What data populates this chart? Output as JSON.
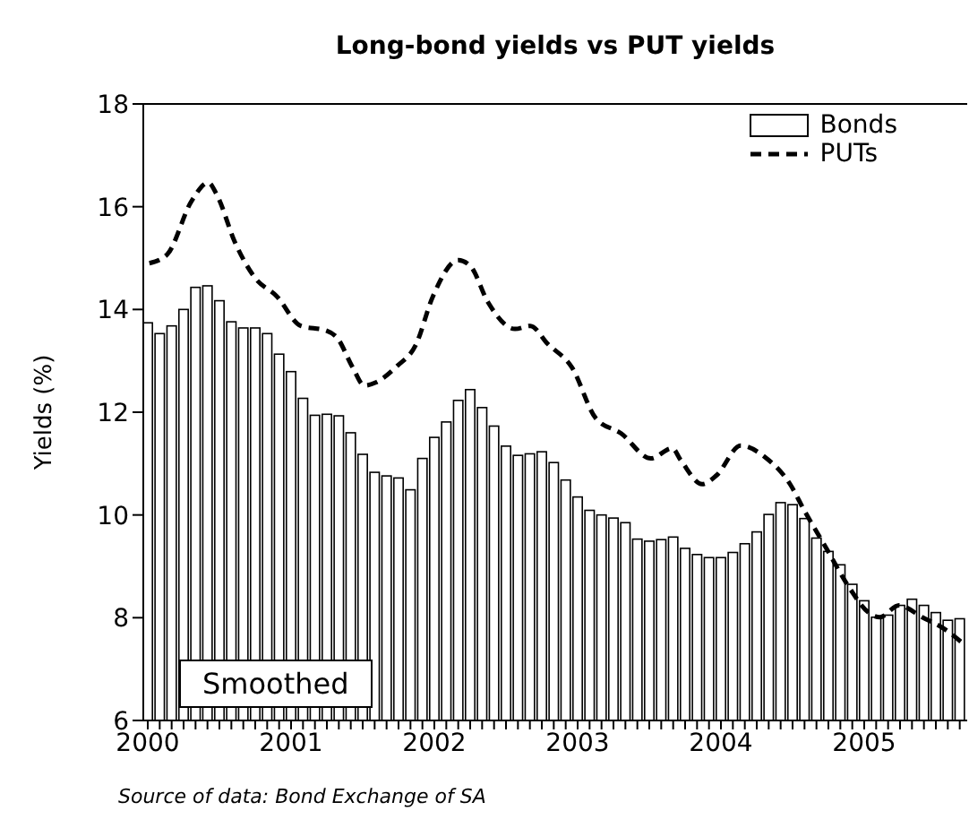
{
  "chart_data": {
    "type": "bar",
    "title": "Long-bond yields vs PUT yields",
    "ylabel": "Yields (%)",
    "annotations": [
      "Smoothed",
      "Source of data: Bond Exchange of SA"
    ],
    "x": [
      "2000-01",
      "2000-02",
      "2000-03",
      "2000-04",
      "2000-05",
      "2000-06",
      "2000-07",
      "2000-08",
      "2000-09",
      "2000-10",
      "2000-11",
      "2000-12",
      "2001-01",
      "2001-02",
      "2001-03",
      "2001-04",
      "2001-05",
      "2001-06",
      "2001-07",
      "2001-08",
      "2001-09",
      "2001-10",
      "2001-11",
      "2001-12",
      "2002-01",
      "2002-02",
      "2002-03",
      "2002-04",
      "2002-05",
      "2002-06",
      "2002-07",
      "2002-08",
      "2002-09",
      "2002-10",
      "2002-11",
      "2002-12",
      "2003-01",
      "2003-02",
      "2003-03",
      "2003-04",
      "2003-05",
      "2003-06",
      "2003-07",
      "2003-08",
      "2003-09",
      "2003-10",
      "2003-11",
      "2003-12",
      "2004-01",
      "2004-02",
      "2004-03",
      "2004-04",
      "2004-05",
      "2004-06",
      "2004-07",
      "2004-08",
      "2004-09",
      "2004-10",
      "2004-11",
      "2004-12",
      "2005-01",
      "2005-02",
      "2005-03",
      "2005-04",
      "2005-05",
      "2005-06",
      "2005-07",
      "2005-08",
      "2005-09"
    ],
    "series": [
      {
        "name": "Bonds",
        "color": "#ffffff",
        "values": [
          13.74,
          13.53,
          13.68,
          14.0,
          14.43,
          14.46,
          14.17,
          13.76,
          13.64,
          13.64,
          13.53,
          13.13,
          12.79,
          12.27,
          11.94,
          11.96,
          11.93,
          11.6,
          11.18,
          10.83,
          10.76,
          10.72,
          10.49,
          11.1,
          11.51,
          11.81,
          12.23,
          12.44,
          12.09,
          11.73,
          11.34,
          11.16,
          11.19,
          11.23,
          11.02,
          10.68,
          10.35,
          10.09,
          10.0,
          9.94,
          9.85,
          9.53,
          9.49,
          9.52,
          9.57,
          9.35,
          9.23,
          9.17,
          9.17,
          9.27,
          9.44,
          9.67,
          10.01,
          10.24,
          10.2,
          9.93,
          9.55,
          9.29,
          9.03,
          8.65,
          8.33,
          8.01,
          8.05,
          8.24,
          8.36,
          8.24,
          8.1,
          7.95,
          7.98
        ]
      },
      {
        "name": "PUTs",
        "type": "line",
        "color": "#000000",
        "line_style": "dashed",
        "x": [
          "2000-01-05",
          "2000-02-20",
          "2000-04-22",
          "2000-06-03",
          "2000-06-25",
          "2000-08-10",
          "2000-10-01",
          "2000-11-25",
          "2001-01-26",
          "2001-03-29",
          "2001-04-27",
          "2001-06-06",
          "2001-07-05",
          "2001-08-04",
          "2001-09-28",
          "2001-11-14",
          "2001-12-28",
          "2002-03-01",
          "2002-04-02",
          "2002-05-16",
          "2002-07-24",
          "2002-09-02",
          "2002-10-16",
          "2002-12-17",
          "2003-02-17",
          "2003-04-20",
          "2003-07-05",
          "2003-08-29",
          "2003-09-20",
          "2003-11-14",
          "2003-12-20",
          "2004-02-21",
          "2004-04-23",
          "2004-06-25",
          "2004-08-01",
          "2004-09-24",
          "2004-11-25",
          "2005-01-12",
          "2005-02-10",
          "2005-03-29",
          "2005-05-27",
          "2005-07-27",
          "2005-09-06"
        ],
        "values": [
          14.9,
          15.07,
          16.12,
          16.47,
          16.23,
          15.31,
          14.61,
          14.26,
          13.68,
          13.59,
          13.45,
          12.87,
          12.52,
          12.58,
          12.9,
          13.3,
          14.26,
          14.96,
          14.84,
          14.14,
          13.62,
          13.68,
          13.33,
          12.87,
          11.88,
          11.59,
          11.1,
          11.3,
          11.07,
          10.6,
          10.77,
          11.35,
          11.12,
          10.6,
          10.08,
          9.38,
          8.57,
          8.1,
          8.01,
          8.24,
          8.01,
          7.76,
          7.52
        ]
      }
    ],
    "xlim": [
      "1999-12-20",
      "2005-09-20"
    ],
    "xticks": [
      "2000",
      {
        "value": "2000-02",
        "label": null
      },
      {
        "value": "2000-03",
        "label": null
      },
      {
        "value": "2000-04",
        "label": null
      },
      {
        "value": "2000-05",
        "label": null
      },
      {
        "value": "2000-06",
        "label": null
      },
      {
        "value": "2000-07",
        "label": null
      },
      {
        "value": "2000-08",
        "label": null
      },
      {
        "value": "2000-09",
        "label": null
      },
      {
        "value": "2000-10",
        "label": null
      },
      {
        "value": "2000-11",
        "label": null
      },
      {
        "value": "2000-12",
        "label": null
      },
      "2001",
      {
        "value": "2001-02",
        "label": null
      },
      {
        "value": "2001-03",
        "label": null
      },
      {
        "value": "2001-04",
        "label": null
      },
      {
        "value": "2001-05",
        "label": null
      },
      {
        "value": "2001-06",
        "label": null
      },
      {
        "value": "2001-07",
        "label": null
      },
      {
        "value": "2001-08",
        "label": null
      },
      {
        "value": "2001-09",
        "label": null
      },
      {
        "value": "2001-10",
        "label": null
      },
      {
        "value": "2001-11",
        "label": null
      },
      {
        "value": "2001-12",
        "label": null
      },
      "2002",
      {
        "value": "2002-02",
        "label": null
      },
      {
        "value": "2002-03",
        "label": null
      },
      {
        "value": "2002-04",
        "label": null
      },
      {
        "value": "2002-05",
        "label": null
      },
      {
        "value": "2002-06",
        "label": null
      },
      {
        "value": "2002-07",
        "label": null
      },
      {
        "value": "2002-08",
        "label": null
      },
      {
        "value": "2002-09",
        "label": null
      },
      {
        "value": "2002-10",
        "label": null
      },
      {
        "value": "2002-11",
        "label": null
      },
      {
        "value": "2002-12",
        "label": null
      },
      "2003",
      {
        "value": "2003-02",
        "label": null
      },
      {
        "value": "2003-03",
        "label": null
      },
      {
        "value": "2003-04",
        "label": null
      },
      {
        "value": "2003-05",
        "label": null
      },
      {
        "value": "2003-06",
        "label": null
      },
      {
        "value": "2003-07",
        "label": null
      },
      {
        "value": "2003-08",
        "label": null
      },
      {
        "value": "2003-09",
        "label": null
      },
      {
        "value": "2003-10",
        "label": null
      },
      {
        "value": "2003-11",
        "label": null
      },
      {
        "value": "2003-12",
        "label": null
      },
      "2004",
      {
        "value": "2004-02",
        "label": null
      },
      {
        "value": "2004-03",
        "label": null
      },
      {
        "value": "2004-04",
        "label": null
      },
      {
        "value": "2004-05",
        "label": null
      },
      {
        "value": "2004-06",
        "label": null
      },
      {
        "value": "2004-07",
        "label": null
      },
      {
        "value": "2004-08",
        "label": null
      },
      {
        "value": "2004-09",
        "label": null
      },
      {
        "value": "2004-10",
        "label": null
      },
      {
        "value": "2004-11",
        "label": null
      },
      {
        "value": "2004-12",
        "label": null
      },
      "2005",
      {
        "value": "2005-02",
        "label": null
      },
      {
        "value": "2005-03",
        "label": null
      },
      {
        "value": "2005-04",
        "label": null
      },
      {
        "value": "2005-05",
        "label": null
      },
      {
        "value": "2005-06",
        "label": null
      },
      {
        "value": "2005-07",
        "label": null
      },
      {
        "value": "2005-08",
        "label": null
      },
      {
        "value": "2005-09",
        "label": null
      }
    ],
    "ylim": [
      6,
      18
    ],
    "yticks": [
      6,
      8,
      10,
      12,
      14,
      16,
      18
    ],
    "legend": "top right"
  }
}
